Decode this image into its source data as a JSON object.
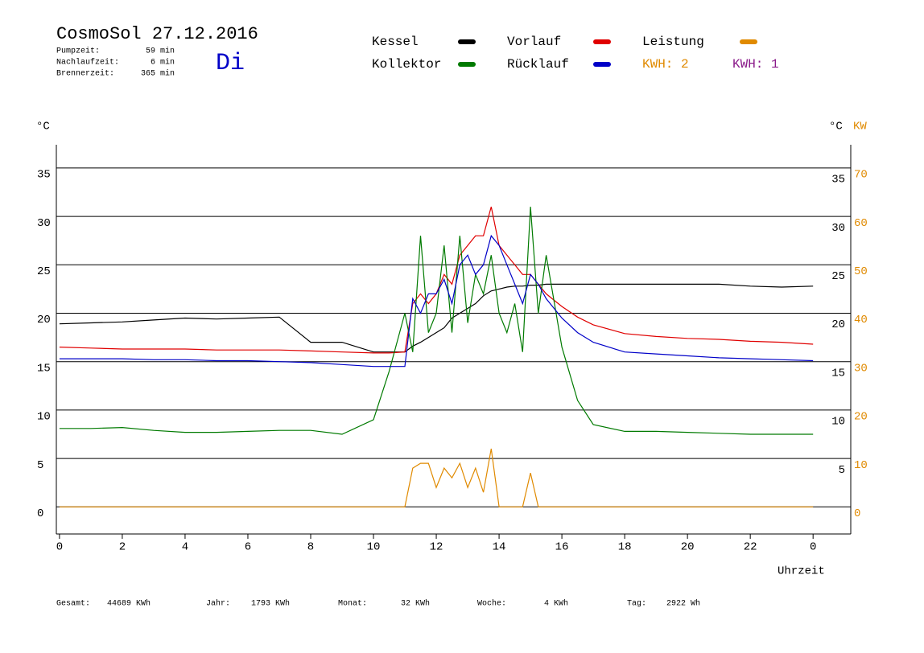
{
  "chart_data": {
    "type": "line",
    "title": "CosmoSol 27.12.2016",
    "day": "Di",
    "stats": [
      {
        "label": "Pumpzeit:",
        "value": "59 min"
      },
      {
        "label": "Nachlaufzeit:",
        "value": "6 min"
      },
      {
        "label": "Brennerzeit:",
        "value": "365 min"
      }
    ],
    "kwh_labels": [
      {
        "text": "KWH: 2",
        "color": "#e08a00"
      },
      {
        "text": "KWH: 1",
        "color": "#8a1a8a"
      }
    ],
    "y_label": "°C",
    "y2_label": "KW",
    "x_label": "Uhrzeit",
    "x": [
      0,
      1,
      2,
      3,
      4,
      5,
      6,
      7,
      8,
      9,
      10,
      10.5,
      11,
      11.25,
      11.5,
      11.75,
      12,
      12.25,
      12.5,
      12.75,
      13,
      13.25,
      13.5,
      13.75,
      14,
      14.25,
      14.5,
      14.75,
      15,
      15.25,
      15.5,
      16,
      16.5,
      17,
      18,
      19,
      20,
      21,
      22,
      23,
      24
    ],
    "xlim": [
      -0.1,
      25.2
    ],
    "xticks": [
      0,
      2,
      4,
      6,
      8,
      10,
      12,
      14,
      16,
      18,
      20,
      22,
      {
        "value": 24,
        "label": "0"
      }
    ],
    "ylim": [
      -2.8,
      37.4
    ],
    "yticks": [
      0,
      5,
      10,
      15,
      20,
      25,
      30,
      35
    ],
    "yticks_right": [
      5,
      10,
      15,
      20,
      25,
      30,
      35
    ],
    "y2lim": [
      -5.6,
      74.8
    ],
    "y2ticks": [
      0,
      10,
      20,
      30,
      40,
      50,
      60,
      70
    ],
    "grid": true,
    "series": [
      {
        "name": "Kessel",
        "color": "#000000",
        "values": [
          18.9,
          19.0,
          19.1,
          19.3,
          19.5,
          19.4,
          19.5,
          19.6,
          17.0,
          17.0,
          16.0,
          16.0,
          16.0,
          16.6,
          17.0,
          17.5,
          18.0,
          18.5,
          19.5,
          20.0,
          20.5,
          21.0,
          21.8,
          22.3,
          22.5,
          22.7,
          22.8,
          22.8,
          22.9,
          22.9,
          23.0,
          23.0,
          23.0,
          23.0,
          23.0,
          23.0,
          23.0,
          23.0,
          22.8,
          22.7,
          22.8
        ]
      },
      {
        "name": "Vorlauf",
        "color": "#e00000",
        "values": [
          16.5,
          16.4,
          16.3,
          16.3,
          16.3,
          16.2,
          16.2,
          16.2,
          16.1,
          16.0,
          15.9,
          15.9,
          16.0,
          21.0,
          22.0,
          21.0,
          22.0,
          24.0,
          23.0,
          26.0,
          27.0,
          28.0,
          28.0,
          31.0,
          27.0,
          26.0,
          25.0,
          24.0,
          24.0,
          23.0,
          22.0,
          20.7,
          19.6,
          18.8,
          17.9,
          17.6,
          17.4,
          17.3,
          17.1,
          17.0,
          16.8
        ]
      },
      {
        "name": "Leistung",
        "color": "#e08a00",
        "axis": "y2",
        "values": [
          0,
          0,
          0,
          0,
          0,
          0,
          0,
          0,
          0,
          0,
          0,
          0,
          0,
          8,
          9,
          9,
          4,
          8,
          6,
          9,
          4,
          8,
          3,
          12,
          0,
          0,
          0,
          0,
          7,
          0,
          0,
          0,
          0,
          0,
          0,
          0,
          0,
          0,
          0,
          0,
          0
        ]
      },
      {
        "name": "Kollektor",
        "color": "#007a00",
        "values": [
          8.1,
          8.1,
          8.2,
          7.9,
          7.7,
          7.7,
          7.8,
          7.9,
          7.9,
          7.5,
          9.0,
          14.0,
          20.0,
          16.0,
          28.0,
          18.0,
          20.0,
          27.0,
          18.0,
          28.0,
          19.0,
          24.0,
          22.0,
          26.0,
          20.0,
          18.0,
          21.0,
          16.0,
          31.0,
          20.0,
          26.0,
          16.5,
          11.0,
          8.5,
          7.8,
          7.8,
          7.7,
          7.6,
          7.5,
          7.5,
          7.5
        ]
      },
      {
        "name": "Rücklauf",
        "color": "#0000c8",
        "values": [
          15.3,
          15.3,
          15.3,
          15.2,
          15.2,
          15.1,
          15.1,
          15.0,
          14.9,
          14.7,
          14.5,
          14.5,
          14.5,
          21.5,
          20.0,
          22.0,
          22.0,
          23.5,
          21.0,
          25.0,
          26.0,
          24.0,
          25.0,
          28.0,
          27.0,
          25.0,
          23.0,
          21.0,
          24.0,
          23.0,
          21.5,
          19.5,
          18.0,
          17.0,
          16.0,
          15.8,
          15.6,
          15.4,
          15.3,
          15.2,
          15.1
        ]
      }
    ],
    "totals": [
      {
        "label": "Gesamt:",
        "value": "44689 KWh"
      },
      {
        "label": "Jahr:",
        "value": "1793 KWh"
      },
      {
        "label": "Monat:",
        "value": "32 KWh"
      },
      {
        "label": "Woche:",
        "value": "4 KWh"
      },
      {
        "label": "Tag:",
        "value": "2922 Wh"
      }
    ]
  }
}
